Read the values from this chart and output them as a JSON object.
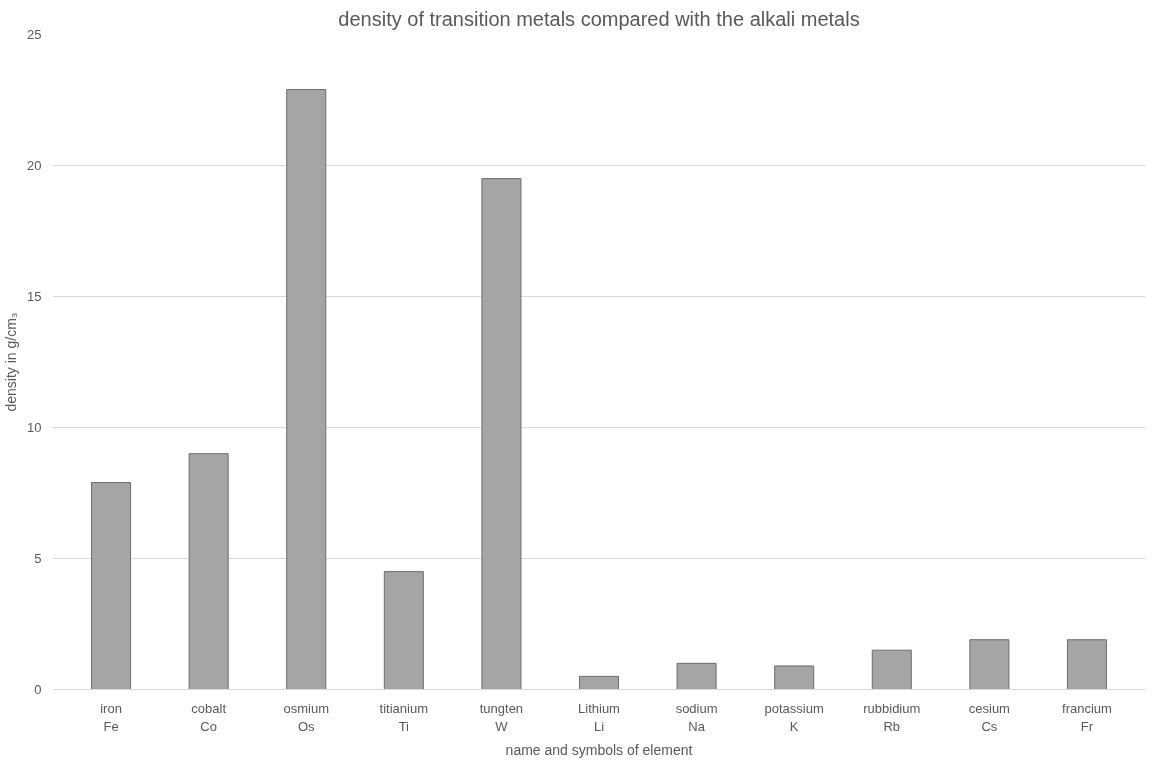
{
  "chart_data": {
    "type": "bar",
    "title": "density of transition metals compared with the alkali metals",
    "xlabel": "name and symbols of element",
    "ylabel": "density in g/cm₃",
    "categories": [
      "iron\nFe",
      "cobalt\nCo",
      "osmium\nOs",
      "titianium\nTi",
      "tungten\nW",
      "Lithium\nLi",
      "sodium\nNa",
      "potassium\nK",
      "rubbidium\nRb",
      "cesium\nCs",
      "francium\nFr"
    ],
    "values": [
      7.9,
      9.0,
      22.9,
      4.5,
      19.5,
      0.5,
      1.0,
      0.9,
      1.5,
      1.9,
      1.9
    ],
    "color": "#a5a5a5",
    "ylim": [
      0,
      25
    ],
    "yticks": [
      0,
      5,
      10,
      15,
      20,
      25
    ],
    "grid": "y"
  }
}
